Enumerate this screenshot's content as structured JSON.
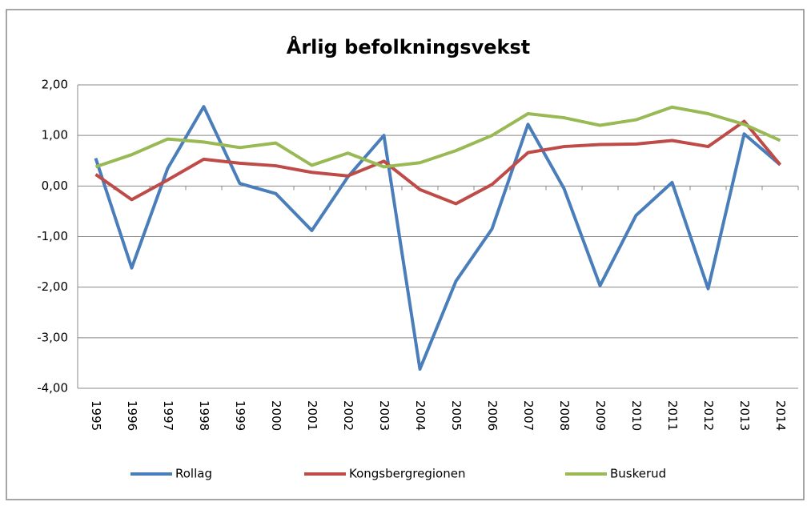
{
  "chart_data": {
    "type": "line",
    "title": "Årlig befolkningsvekst",
    "categories": [
      "1995",
      "1996",
      "1997",
      "1998",
      "1999",
      "2000",
      "2001",
      "2002",
      "2003",
      "2004",
      "2005",
      "2006",
      "2007",
      "2008",
      "2009",
      "2010",
      "2011",
      "2012",
      "2013",
      "2014"
    ],
    "series": [
      {
        "name": "Rollag",
        "color": "#4a7ebb",
        "values": [
          0.55,
          -1.62,
          0.35,
          1.57,
          0.05,
          -0.15,
          -0.88,
          0.18,
          1.0,
          -3.62,
          -1.88,
          -0.85,
          1.22,
          -0.05,
          -1.97,
          -0.58,
          0.07,
          -2.03,
          1.03,
          0.42
        ]
      },
      {
        "name": "Kongsbergregionen",
        "color": "#be4b48",
        "values": [
          0.23,
          -0.27,
          0.12,
          0.53,
          0.45,
          0.4,
          0.27,
          0.2,
          0.49,
          -0.07,
          -0.35,
          0.03,
          0.66,
          0.78,
          0.82,
          0.83,
          0.9,
          0.78,
          1.28,
          0.42
        ]
      },
      {
        "name": "Buskerud",
        "color": "#98b954",
        "values": [
          0.38,
          0.62,
          0.93,
          0.87,
          0.76,
          0.85,
          0.41,
          0.65,
          0.38,
          0.46,
          0.7,
          1.0,
          1.43,
          1.35,
          1.2,
          1.31,
          1.56,
          1.43,
          1.22,
          0.9
        ]
      }
    ],
    "ylim": [
      -4,
      2
    ],
    "yticks": [
      {
        "value": -4,
        "label": "-4,00"
      },
      {
        "value": -3,
        "label": "-3,00"
      },
      {
        "value": -2,
        "label": "-2,00"
      },
      {
        "value": -1,
        "label": "-1,00"
      },
      {
        "value": 0,
        "label": "0,00"
      },
      {
        "value": 1,
        "label": "1,00"
      },
      {
        "value": 2,
        "label": "2,00"
      }
    ],
    "grid": true,
    "legend": "bottom"
  }
}
